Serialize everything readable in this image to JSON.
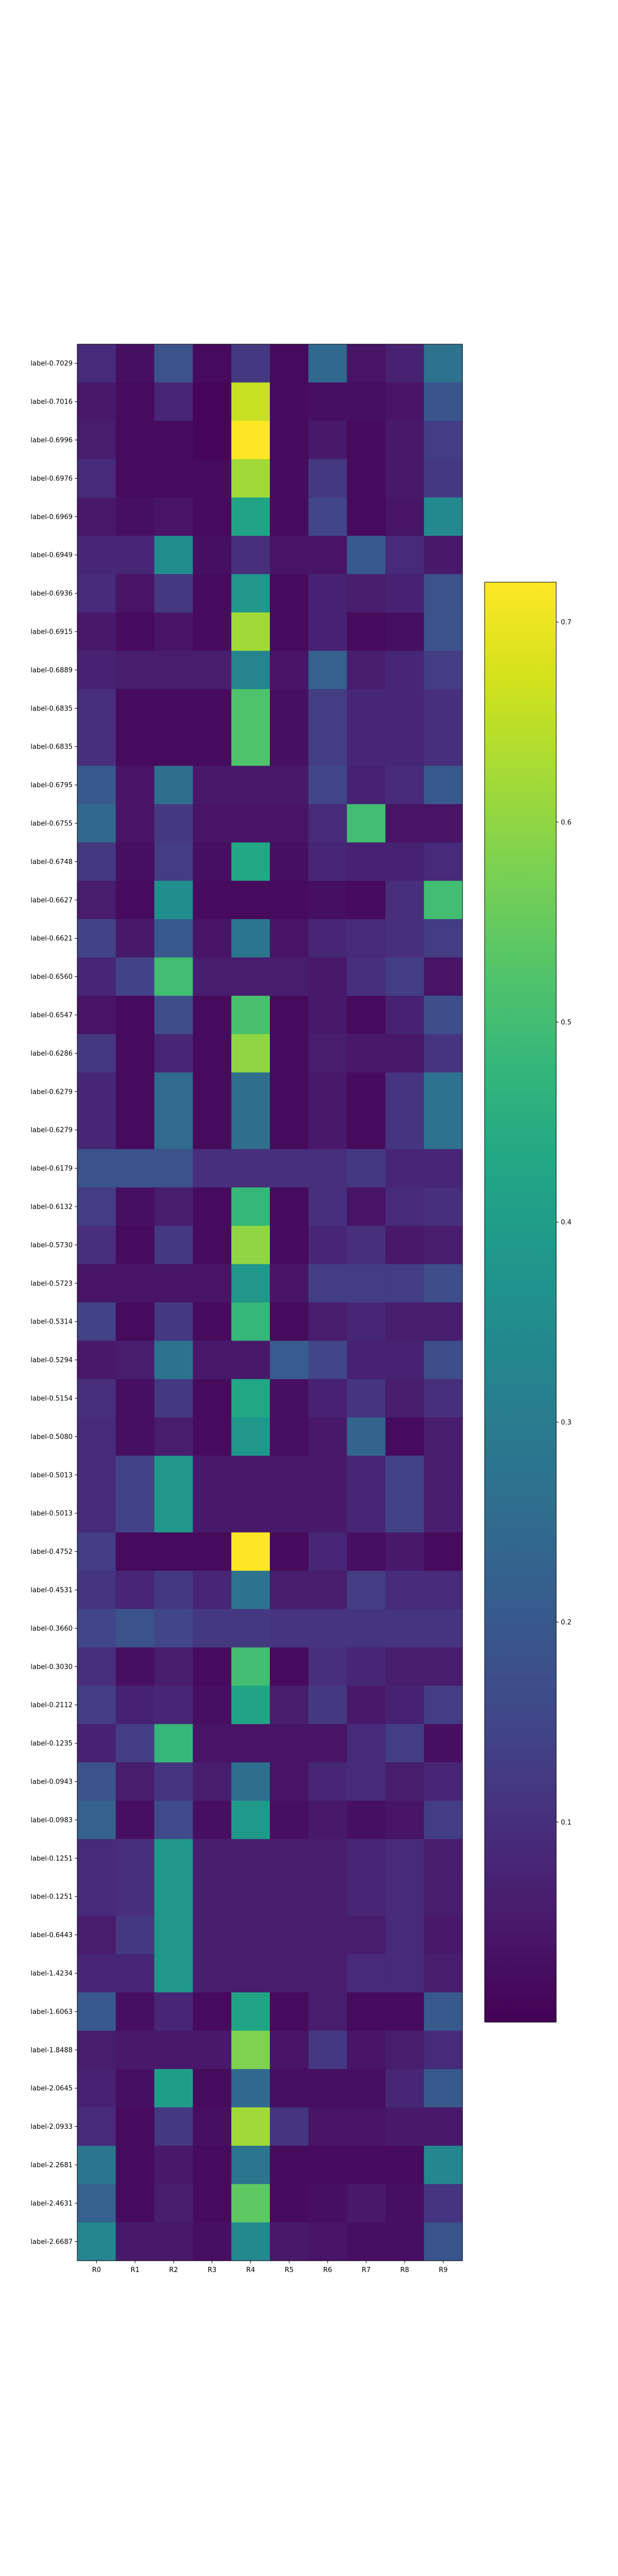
{
  "chart_data": {
    "type": "heatmap",
    "colormap": "viridis",
    "columns": [
      "R0",
      "R1",
      "R2",
      "R3",
      "R4",
      "R5",
      "R6",
      "R7",
      "R8",
      "R9"
    ],
    "rows": [
      "label-0.7029",
      "label-0.7016",
      "label-0.6996",
      "label-0.6976",
      "label-0.6969",
      "label-0.6949",
      "label-0.6936",
      "label-0.6915",
      "label-0.6889",
      "label-0.6835",
      "label-0.6835",
      "label-0.6795",
      "label-0.6755",
      "label-0.6748",
      "label-0.6627",
      "label-0.6621",
      "label-0.6560",
      "label-0.6547",
      "label-0.6286",
      "label-0.6279",
      "label-0.6279",
      "label-0.6179",
      "label-0.6132",
      "label-0.5730",
      "label-0.5723",
      "label-0.5314",
      "label-0.5294",
      "label-0.5154",
      "label-0.5080",
      "label-0.5013",
      "label-0.5013",
      "label-0.4752",
      "label-0.4531",
      "label-0.3660",
      "label-0.3030",
      "label-0.2112",
      "label-0.1235",
      "label-0.0943",
      "label-0.0983",
      "label-0.1251",
      "label-0.1251",
      "label-0.6443",
      "label-1.4234",
      "label-1.6063",
      "label-1.8488",
      "label-2.0645",
      "label-2.0933",
      "label-2.2681",
      "label-2.4631",
      "label-2.6687"
    ],
    "values": [
      [
        0.09,
        0.03,
        0.18,
        0.02,
        0.12,
        0.02,
        0.24,
        0.04,
        0.07,
        0.27
      ],
      [
        0.05,
        0.02,
        0.08,
        0.01,
        0.66,
        0.02,
        0.03,
        0.03,
        0.04,
        0.19
      ],
      [
        0.06,
        0.02,
        0.02,
        0.01,
        0.72,
        0.02,
        0.05,
        0.02,
        0.05,
        0.13
      ],
      [
        0.09,
        0.02,
        0.02,
        0.02,
        0.62,
        0.02,
        0.12,
        0.02,
        0.05,
        0.12
      ],
      [
        0.05,
        0.03,
        0.04,
        0.02,
        0.42,
        0.02,
        0.15,
        0.02,
        0.04,
        0.34
      ],
      [
        0.08,
        0.08,
        0.35,
        0.03,
        0.1,
        0.04,
        0.04,
        0.2,
        0.09,
        0.05
      ],
      [
        0.09,
        0.04,
        0.12,
        0.02,
        0.38,
        0.02,
        0.07,
        0.06,
        0.07,
        0.18
      ],
      [
        0.05,
        0.02,
        0.04,
        0.02,
        0.62,
        0.02,
        0.07,
        0.02,
        0.03,
        0.18
      ],
      [
        0.07,
        0.06,
        0.06,
        0.06,
        0.32,
        0.04,
        0.22,
        0.06,
        0.08,
        0.13
      ],
      [
        0.1,
        0.02,
        0.02,
        0.02,
        0.52,
        0.03,
        0.13,
        0.08,
        0.08,
        0.1
      ],
      [
        0.1,
        0.02,
        0.02,
        0.02,
        0.52,
        0.03,
        0.13,
        0.08,
        0.08,
        0.1
      ],
      [
        0.2,
        0.04,
        0.26,
        0.05,
        0.05,
        0.05,
        0.15,
        0.07,
        0.09,
        0.2
      ],
      [
        0.24,
        0.04,
        0.12,
        0.04,
        0.04,
        0.04,
        0.09,
        0.5,
        0.04,
        0.04
      ],
      [
        0.12,
        0.03,
        0.13,
        0.03,
        0.43,
        0.03,
        0.08,
        0.07,
        0.07,
        0.09
      ],
      [
        0.06,
        0.02,
        0.35,
        0.02,
        0.02,
        0.02,
        0.03,
        0.02,
        0.1,
        0.5
      ],
      [
        0.14,
        0.05,
        0.2,
        0.04,
        0.28,
        0.04,
        0.08,
        0.09,
        0.1,
        0.13
      ],
      [
        0.08,
        0.14,
        0.5,
        0.06,
        0.06,
        0.06,
        0.05,
        0.1,
        0.13,
        0.04
      ],
      [
        0.04,
        0.02,
        0.17,
        0.02,
        0.51,
        0.02,
        0.05,
        0.02,
        0.07,
        0.17
      ],
      [
        0.12,
        0.02,
        0.08,
        0.02,
        0.6,
        0.02,
        0.06,
        0.05,
        0.05,
        0.11
      ],
      [
        0.08,
        0.02,
        0.25,
        0.02,
        0.26,
        0.02,
        0.05,
        0.02,
        0.11,
        0.27
      ],
      [
        0.08,
        0.02,
        0.25,
        0.02,
        0.26,
        0.02,
        0.05,
        0.02,
        0.11,
        0.27
      ],
      [
        0.18,
        0.18,
        0.18,
        0.1,
        0.1,
        0.1,
        0.1,
        0.12,
        0.08,
        0.08
      ],
      [
        0.13,
        0.03,
        0.06,
        0.02,
        0.48,
        0.02,
        0.1,
        0.04,
        0.09,
        0.1
      ],
      [
        0.1,
        0.02,
        0.12,
        0.02,
        0.6,
        0.02,
        0.08,
        0.1,
        0.05,
        0.06
      ],
      [
        0.04,
        0.04,
        0.04,
        0.04,
        0.38,
        0.04,
        0.13,
        0.13,
        0.13,
        0.17
      ],
      [
        0.14,
        0.02,
        0.12,
        0.02,
        0.48,
        0.02,
        0.06,
        0.08,
        0.06,
        0.06
      ],
      [
        0.05,
        0.06,
        0.27,
        0.05,
        0.05,
        0.21,
        0.15,
        0.07,
        0.07,
        0.17
      ],
      [
        0.1,
        0.03,
        0.12,
        0.02,
        0.43,
        0.03,
        0.07,
        0.11,
        0.06,
        0.1
      ],
      [
        0.09,
        0.03,
        0.06,
        0.02,
        0.38,
        0.03,
        0.05,
        0.23,
        0.02,
        0.06
      ],
      [
        0.09,
        0.14,
        0.38,
        0.05,
        0.05,
        0.05,
        0.05,
        0.08,
        0.14,
        0.06
      ],
      [
        0.09,
        0.14,
        0.38,
        0.05,
        0.05,
        0.05,
        0.05,
        0.08,
        0.14,
        0.06
      ],
      [
        0.13,
        0.02,
        0.02,
        0.02,
        0.72,
        0.02,
        0.08,
        0.03,
        0.05,
        0.02
      ],
      [
        0.11,
        0.08,
        0.12,
        0.08,
        0.27,
        0.06,
        0.06,
        0.13,
        0.09,
        0.09
      ],
      [
        0.15,
        0.18,
        0.15,
        0.12,
        0.12,
        0.11,
        0.11,
        0.11,
        0.11,
        0.11
      ],
      [
        0.1,
        0.03,
        0.06,
        0.02,
        0.5,
        0.02,
        0.1,
        0.08,
        0.06,
        0.06
      ],
      [
        0.13,
        0.07,
        0.08,
        0.03,
        0.42,
        0.06,
        0.12,
        0.05,
        0.07,
        0.13
      ],
      [
        0.07,
        0.13,
        0.48,
        0.04,
        0.04,
        0.04,
        0.04,
        0.09,
        0.13,
        0.03
      ],
      [
        0.18,
        0.06,
        0.11,
        0.06,
        0.26,
        0.04,
        0.08,
        0.09,
        0.06,
        0.08
      ],
      [
        0.22,
        0.03,
        0.16,
        0.03,
        0.39,
        0.03,
        0.05,
        0.03,
        0.04,
        0.13
      ],
      [
        0.09,
        0.1,
        0.38,
        0.06,
        0.06,
        0.06,
        0.06,
        0.08,
        0.09,
        0.06
      ],
      [
        0.09,
        0.1,
        0.38,
        0.06,
        0.06,
        0.06,
        0.06,
        0.08,
        0.09,
        0.06
      ],
      [
        0.06,
        0.12,
        0.38,
        0.06,
        0.06,
        0.06,
        0.06,
        0.06,
        0.09,
        0.05
      ],
      [
        0.08,
        0.08,
        0.38,
        0.06,
        0.06,
        0.06,
        0.06,
        0.09,
        0.09,
        0.06
      ],
      [
        0.2,
        0.03,
        0.08,
        0.02,
        0.42,
        0.02,
        0.06,
        0.02,
        0.02,
        0.2
      ],
      [
        0.06,
        0.05,
        0.05,
        0.05,
        0.58,
        0.04,
        0.12,
        0.04,
        0.06,
        0.09
      ],
      [
        0.07,
        0.03,
        0.4,
        0.02,
        0.24,
        0.03,
        0.03,
        0.03,
        0.08,
        0.2
      ],
      [
        0.09,
        0.02,
        0.12,
        0.03,
        0.62,
        0.11,
        0.04,
        0.04,
        0.05,
        0.05
      ],
      [
        0.28,
        0.02,
        0.05,
        0.02,
        0.28,
        0.02,
        0.02,
        0.02,
        0.02,
        0.33
      ],
      [
        0.22,
        0.02,
        0.06,
        0.02,
        0.54,
        0.02,
        0.03,
        0.05,
        0.03,
        0.11
      ],
      [
        0.33,
        0.05,
        0.05,
        0.03,
        0.34,
        0.05,
        0.04,
        0.03,
        0.03,
        0.19
      ]
    ],
    "colorbar": {
      "min": 0.0,
      "max": 0.72,
      "ticks": [
        0.1,
        0.2,
        0.3,
        0.4,
        0.5,
        0.6,
        0.7
      ],
      "tick_labels": [
        "0.1",
        "0.2",
        "0.3",
        "0.4",
        "0.5",
        "0.6",
        "0.7"
      ]
    }
  }
}
